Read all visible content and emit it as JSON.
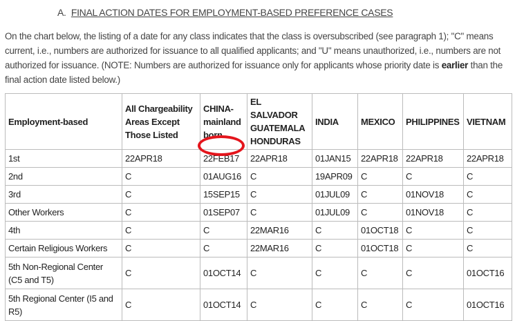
{
  "heading": {
    "prefix": "A.",
    "title": "FINAL ACTION DATES FOR EMPLOYMENT-BASED PREFERENCE CASES"
  },
  "paragraph": {
    "text": "On the chart below, the listing of a date for any class indicates that the class is oversubscribed (see paragraph 1); \"C\" means current, i.e., numbers are authorized for issuance to all qualified applicants; and \"U\" means unauthorized, i.e., numbers are not authorized for issuance. (NOTE: Numbers are authorized for issuance only for applicants whose priority date is ",
    "bold": "earlier",
    "tail": " than the final action date listed below.)"
  },
  "table": {
    "headers": [
      "Employment-based",
      "All Chargeability Areas Except Those Listed",
      "CHINA-mainland born",
      "EL SALVADOR GUATEMALA HONDURAS",
      "INDIA",
      "MEXICO",
      "PHILIPPINES",
      "VIETNAM"
    ],
    "rows": [
      [
        "1st",
        "22APR18",
        "22FEB17",
        "22APR18",
        "01JAN15",
        "22APR18",
        "22APR18",
        "22APR18"
      ],
      [
        "2nd",
        "C",
        "01AUG16",
        "C",
        "19APR09",
        "C",
        "C",
        "C"
      ],
      [
        "3rd",
        "C",
        "15SEP15",
        "C",
        "01JUL09",
        "C",
        "01NOV18",
        "C"
      ],
      [
        "Other Workers",
        "C",
        "01SEP07",
        "C",
        "01JUL09",
        "C",
        "01NOV18",
        "C"
      ],
      [
        "4th",
        "C",
        "C",
        "22MAR16",
        "C",
        "01OCT18",
        "C",
        "C"
      ],
      [
        "Certain Religious Workers",
        "C",
        "C",
        "22MAR16",
        "C",
        "01OCT18",
        "C",
        "C"
      ],
      [
        "5th Non-Regional Center (C5 and T5)",
        "C",
        "01OCT14",
        "C",
        "C",
        "C",
        "C",
        "01OCT16"
      ],
      [
        "5th Regional Center (I5 and R5)",
        "C",
        "01OCT14",
        "C",
        "C",
        "C",
        "C",
        "01OCT16"
      ]
    ]
  },
  "annotation": {
    "shape": "red-circle",
    "target": "22FEB17",
    "color": "#e4151c"
  }
}
